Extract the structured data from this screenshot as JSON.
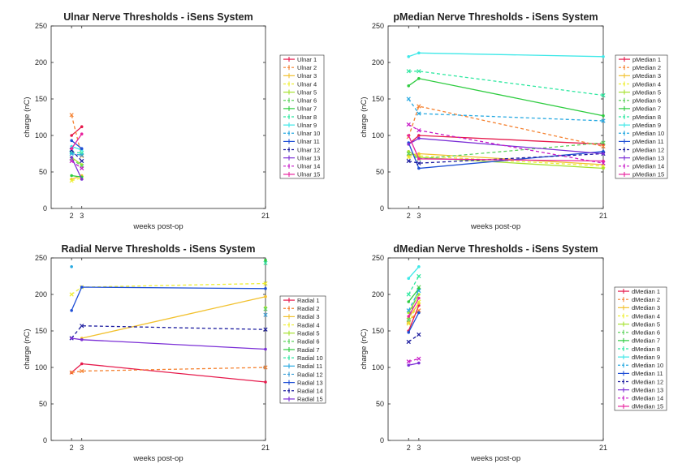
{
  "figure": {
    "xlabel": "weeks post-op",
    "ylabel": "charge (nC)"
  },
  "chart_data": [
    {
      "type": "line",
      "title": "Ulnar Nerve Thresholds - iSens System",
      "xlabel": "weeks post-op",
      "ylabel": "charge (nC)",
      "xlim": [
        0,
        21
      ],
      "ylim": [
        0,
        250
      ],
      "xticks": [
        2,
        3,
        21
      ],
      "yticks": [
        0,
        50,
        100,
        150,
        200,
        250
      ],
      "grid": false,
      "legend_position": "right",
      "series": [
        {
          "name": "Ulnar 1",
          "color": "#e6194b",
          "style": "solid",
          "points": [
            [
              2,
              100
            ],
            [
              3,
              112
            ]
          ]
        },
        {
          "name": "Ulnar 2",
          "color": "#f58231",
          "style": "dashed",
          "points": [
            [
              2,
              128
            ],
            [
              3,
              72
            ]
          ]
        },
        {
          "name": "Ulnar 3",
          "color": "#f2c12e",
          "style": "solid",
          "points": [
            [
              2,
              40
            ],
            [
              3,
              45
            ]
          ]
        },
        {
          "name": "Ulnar 4",
          "color": "#eeee33",
          "style": "dashed",
          "points": [
            [
              2,
              38
            ],
            [
              3,
              42
            ]
          ]
        },
        {
          "name": "Ulnar 5",
          "color": "#a6e22e",
          "style": "solid",
          "points": [
            [
              2,
              70
            ],
            [
              3,
              60
            ]
          ]
        },
        {
          "name": "Ulnar 6",
          "color": "#5dd35d",
          "style": "dashed",
          "points": [
            [
              2,
              68
            ],
            [
              3,
              58
            ]
          ]
        },
        {
          "name": "Ulnar 7",
          "color": "#2ecc40",
          "style": "solid",
          "points": [
            [
              2,
              45
            ],
            [
              3,
              43
            ]
          ]
        },
        {
          "name": "Ulnar 8",
          "color": "#2ee8a0",
          "style": "dashed",
          "points": [
            [
              2,
              77
            ],
            [
              3,
              76
            ]
          ]
        },
        {
          "name": "Ulnar 9",
          "color": "#3ee8e8",
          "style": "solid",
          "points": [
            [
              2,
              85
            ],
            [
              3,
              80
            ]
          ]
        },
        {
          "name": "Ulnar 10",
          "color": "#27a9e1",
          "style": "dashed",
          "points": [
            [
              2,
              75
            ],
            [
              3,
              73
            ]
          ]
        },
        {
          "name": "Ulnar 11",
          "color": "#1f4fd6",
          "style": "solid",
          "points": [
            [
              2,
              93
            ],
            [
              3,
              82
            ]
          ]
        },
        {
          "name": "Ulnar 12",
          "color": "#1a1a9e",
          "style": "dashed",
          "points": [
            [
              2,
              80
            ],
            [
              3,
              65
            ]
          ]
        },
        {
          "name": "Ulnar 13",
          "color": "#7b2fd6",
          "style": "solid",
          "points": [
            [
              2,
              70
            ],
            [
              3,
              40
            ]
          ]
        },
        {
          "name": "Ulnar 14",
          "color": "#c71ac7",
          "style": "dashed",
          "points": [
            [
              2,
              65
            ],
            [
              3,
              55
            ]
          ]
        },
        {
          "name": "Ulnar 15",
          "color": "#e8239e",
          "style": "solid",
          "points": [
            [
              2,
              82
            ],
            [
              3,
              102
            ]
          ]
        }
      ]
    },
    {
      "type": "line",
      "title": "pMedian Nerve Thresholds - iSens System",
      "xlabel": "weeks post-op",
      "ylabel": "charge (nC)",
      "xlim": [
        0,
        21
      ],
      "ylim": [
        0,
        250
      ],
      "xticks": [
        2,
        3,
        21
      ],
      "yticks": [
        0,
        50,
        100,
        150,
        200,
        250
      ],
      "grid": false,
      "legend_position": "right",
      "series": [
        {
          "name": "pMedian 1",
          "color": "#e6194b",
          "style": "solid",
          "points": [
            [
              2,
              88
            ],
            [
              3,
              100
            ],
            [
              21,
              88
            ]
          ]
        },
        {
          "name": "pMedian 2",
          "color": "#f58231",
          "style": "dashed",
          "points": [
            [
              2,
              98
            ],
            [
              3,
              140
            ],
            [
              21,
              85
            ]
          ]
        },
        {
          "name": "pMedian 3",
          "color": "#f2c12e",
          "style": "solid",
          "points": [
            [
              2,
              73
            ],
            [
              3,
              75
            ],
            [
              21,
              60
            ]
          ]
        },
        {
          "name": "pMedian 4",
          "color": "#eeee33",
          "style": "dashed",
          "points": [
            [
              2,
              70
            ],
            [
              3,
              72
            ],
            [
              21,
              58
            ]
          ]
        },
        {
          "name": "pMedian 5",
          "color": "#a6e22e",
          "style": "solid",
          "points": [
            [
              2,
              78
            ],
            [
              3,
              70
            ],
            [
              21,
              55
            ]
          ]
        },
        {
          "name": "pMedian 6",
          "color": "#5dd35d",
          "style": "dashed",
          "points": [
            [
              2,
              75
            ],
            [
              3,
              68
            ],
            [
              21,
              90
            ]
          ]
        },
        {
          "name": "pMedian 7",
          "color": "#2ecc40",
          "style": "solid",
          "points": [
            [
              2,
              168
            ],
            [
              3,
              178
            ],
            [
              21,
              127
            ]
          ]
        },
        {
          "name": "pMedian 8",
          "color": "#2ee8a0",
          "style": "dashed",
          "points": [
            [
              2,
              188
            ],
            [
              3,
              188
            ],
            [
              21,
              155
            ]
          ]
        },
        {
          "name": "pMedian 9",
          "color": "#3ee8e8",
          "style": "solid",
          "points": [
            [
              2,
              208
            ],
            [
              3,
              213
            ],
            [
              21,
              208
            ]
          ]
        },
        {
          "name": "pMedian 10",
          "color": "#27a9e1",
          "style": "dashed",
          "points": [
            [
              2,
              150
            ],
            [
              3,
              130
            ],
            [
              21,
              120
            ]
          ]
        },
        {
          "name": "pMedian 11",
          "color": "#1f4fd6",
          "style": "solid",
          "points": [
            [
              2,
              90
            ],
            [
              3,
              55
            ],
            [
              21,
              78
            ]
          ]
        },
        {
          "name": "pMedian 12",
          "color": "#1a1a9e",
          "style": "dashed",
          "points": [
            [
              2,
              65
            ],
            [
              3,
              62
            ],
            [
              21,
              75
            ]
          ]
        },
        {
          "name": "pMedian 13",
          "color": "#7b2fd6",
          "style": "solid",
          "points": [
            [
              2,
              88
            ],
            [
              3,
              96
            ],
            [
              21,
              75
            ]
          ]
        },
        {
          "name": "pMedian 14",
          "color": "#c71ac7",
          "style": "dashed",
          "points": [
            [
              2,
              115
            ],
            [
              3,
              107
            ],
            [
              21,
              62
            ]
          ]
        },
        {
          "name": "pMedian 15",
          "color": "#e8239e",
          "style": "solid",
          "points": [
            [
              2,
              100
            ],
            [
              3,
              68
            ],
            [
              21,
              65
            ]
          ]
        }
      ]
    },
    {
      "type": "line",
      "title": "Radial Nerve Thresholds - iSens System",
      "xlabel": "weeks post-op",
      "ylabel": "charge (nC)",
      "xlim": [
        0,
        21
      ],
      "ylim": [
        0,
        250
      ],
      "xticks": [
        2,
        3,
        21
      ],
      "yticks": [
        0,
        50,
        100,
        150,
        200,
        250
      ],
      "grid": false,
      "legend_position": "right",
      "series": [
        {
          "name": "Radial 1",
          "color": "#e6194b",
          "style": "solid",
          "points": [
            [
              2,
              93
            ],
            [
              3,
              105
            ],
            [
              21,
              80
            ]
          ]
        },
        {
          "name": "Radial 2",
          "color": "#f58231",
          "style": "dashed",
          "points": [
            [
              2,
              93
            ],
            [
              3,
              95
            ],
            [
              21,
              100
            ]
          ]
        },
        {
          "name": "Radial 3",
          "color": "#f2c12e",
          "style": "solid",
          "points": [
            [
              3,
              140
            ],
            [
              21,
              197
            ]
          ]
        },
        {
          "name": "Radial 4",
          "color": "#eeee33",
          "style": "dashed",
          "points": [
            [
              2,
              200
            ],
            [
              3,
              210
            ],
            [
              21,
              215
            ]
          ]
        },
        {
          "name": "Radial 5",
          "color": "#a6e22e",
          "style": "solid",
          "points": [
            [
              21,
              182
            ]
          ]
        },
        {
          "name": "Radial 6",
          "color": "#5dd35d",
          "style": "dashed",
          "points": [
            [
              21,
              180
            ]
          ]
        },
        {
          "name": "Radial 7",
          "color": "#2ecc40",
          "style": "solid",
          "points": [
            [
              21,
              247
            ]
          ]
        },
        {
          "name": "Radial 10",
          "color": "#2ee8a0",
          "style": "dashed",
          "points": [
            [
              21,
              243
            ]
          ]
        },
        {
          "name": "Radial 11",
          "color": "#27a9e1",
          "style": "solid",
          "points": [
            [
              2,
              238
            ]
          ]
        },
        {
          "name": "Radial 12",
          "color": "#3a9fd8",
          "style": "dashed",
          "points": [
            [
              21,
              172
            ]
          ]
        },
        {
          "name": "Radial 13",
          "color": "#1f4fd6",
          "style": "solid",
          "points": [
            [
              2,
              178
            ],
            [
              3,
              210
            ],
            [
              21,
              208
            ]
          ]
        },
        {
          "name": "Radial 14",
          "color": "#1a1a9e",
          "style": "dashed",
          "points": [
            [
              2,
              140
            ],
            [
              3,
              157
            ],
            [
              21,
              152
            ]
          ]
        },
        {
          "name": "Radial 15",
          "color": "#7b2fd6",
          "style": "solid",
          "points": [
            [
              2,
              140
            ],
            [
              3,
              138
            ],
            [
              21,
              125
            ]
          ]
        }
      ]
    },
    {
      "type": "line",
      "title": "dMedian Nerve Thresholds - iSens System",
      "xlabel": "weeks post-op",
      "ylabel": "charge (nC)",
      "xlim": [
        0,
        21
      ],
      "ylim": [
        0,
        250
      ],
      "xticks": [
        2,
        3,
        21
      ],
      "yticks": [
        0,
        50,
        100,
        150,
        200,
        250
      ],
      "grid": false,
      "legend_position": "right",
      "series": [
        {
          "name": "dMedian 1",
          "color": "#e6194b",
          "style": "solid",
          "points": [
            [
              2,
              150
            ],
            [
              3,
              185
            ]
          ]
        },
        {
          "name": "dMedian 2",
          "color": "#f58231",
          "style": "dashed",
          "points": [
            [
              2,
              162
            ],
            [
              3,
              178
            ]
          ]
        },
        {
          "name": "dMedian 3",
          "color": "#f2c12e",
          "style": "solid",
          "points": [
            [
              2,
              168
            ],
            [
              3,
              188
            ]
          ]
        },
        {
          "name": "dMedian 4",
          "color": "#eeee33",
          "style": "dashed",
          "points": [
            [
              2,
              160
            ],
            [
              3,
              190
            ]
          ]
        },
        {
          "name": "dMedian 5",
          "color": "#a6e22e",
          "style": "solid",
          "points": [
            [
              2,
              175
            ],
            [
              3,
              200
            ]
          ]
        },
        {
          "name": "dMedian 6",
          "color": "#5dd35d",
          "style": "dashed",
          "points": [
            [
              2,
              165
            ],
            [
              3,
              210
            ]
          ]
        },
        {
          "name": "dMedian 7",
          "color": "#2ecc40",
          "style": "solid",
          "points": [
            [
              2,
              190
            ],
            [
              3,
              208
            ]
          ]
        },
        {
          "name": "dMedian 8",
          "color": "#2ee8a0",
          "style": "dashed",
          "points": [
            [
              2,
              200
            ],
            [
              3,
              225
            ]
          ]
        },
        {
          "name": "dMedian 9",
          "color": "#3ee8e8",
          "style": "solid",
          "points": [
            [
              2,
              222
            ],
            [
              3,
              238
            ]
          ]
        },
        {
          "name": "dMedian 10",
          "color": "#27a9e1",
          "style": "dashed",
          "points": [
            [
              2,
              178
            ],
            [
              3,
              205
            ]
          ]
        },
        {
          "name": "dMedian 11",
          "color": "#1f4fd6",
          "style": "solid",
          "points": [
            [
              2,
              148
            ],
            [
              3,
              175
            ]
          ]
        },
        {
          "name": "dMedian 12",
          "color": "#1a1a9e",
          "style": "dashed",
          "points": [
            [
              2,
              135
            ],
            [
              3,
              145
            ]
          ]
        },
        {
          "name": "dMedian 13",
          "color": "#7b2fd6",
          "style": "solid",
          "points": [
            [
              2,
              103
            ],
            [
              3,
              106
            ]
          ]
        },
        {
          "name": "dMedian 14",
          "color": "#c71ac7",
          "style": "dashed",
          "points": [
            [
              2,
              108
            ],
            [
              3,
              112
            ]
          ]
        },
        {
          "name": "dMedian 15",
          "color": "#e8239e",
          "style": "solid",
          "points": [
            [
              2,
              170
            ],
            [
              3,
              195
            ]
          ]
        }
      ]
    }
  ]
}
